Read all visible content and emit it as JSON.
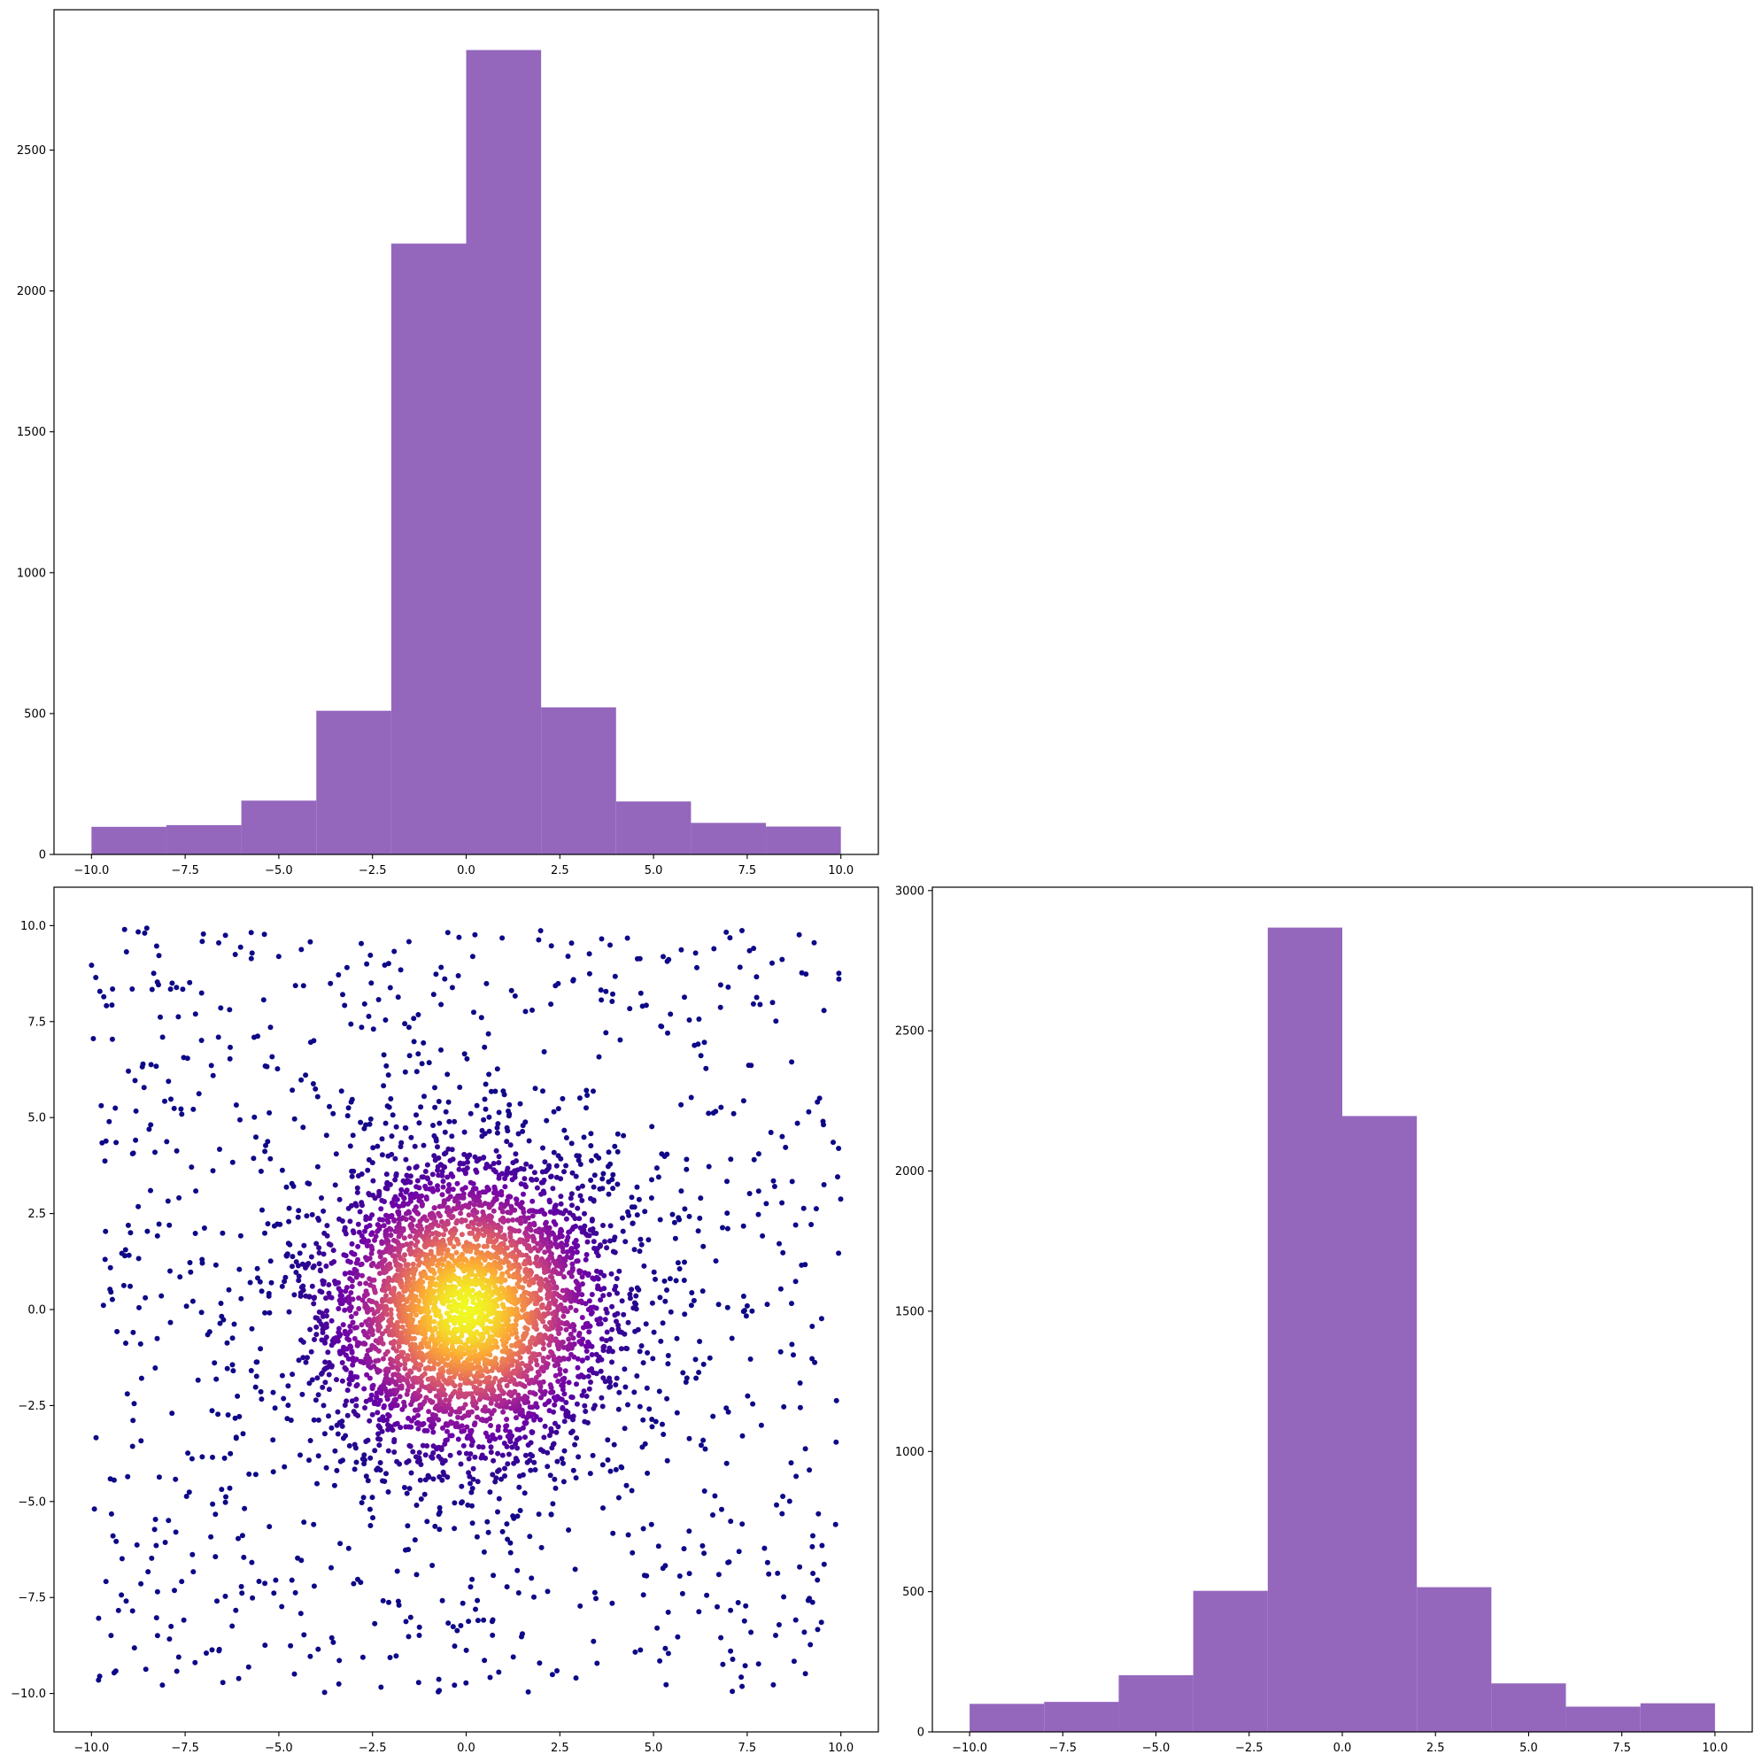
{
  "chart_data": [
    {
      "type": "bar",
      "panel": "top-left",
      "orientation": "vertical",
      "bin_edges": [
        -10,
        -8,
        -6,
        -4,
        -2,
        0,
        2,
        4,
        6,
        8,
        10
      ],
      "values": [
        98,
        104,
        191,
        510,
        2168,
        2855,
        522,
        188,
        112,
        99
      ],
      "color": "#9467bd",
      "xlim": [
        -11,
        11
      ],
      "ylim": [
        0,
        2998
      ],
      "xticks": [
        -10.0,
        -7.5,
        -5.0,
        -2.5,
        0.0,
        2.5,
        5.0,
        7.5,
        10.0
      ],
      "xtick_labels": [
        "−10.0",
        "−7.5",
        "−5.0",
        "−2.5",
        "0.0",
        "2.5",
        "5.0",
        "7.5",
        "10.0"
      ],
      "yticks": [
        0,
        500,
        1000,
        1500,
        2000,
        2500
      ],
      "ytick_labels": [
        "0",
        "500",
        "1000",
        "1500",
        "2000",
        "2500"
      ],
      "title": "",
      "xlabel": "",
      "ylabel": "",
      "grid": false
    },
    {
      "type": "scatter",
      "panel": "bottom-left",
      "description_of_points": "about 5000 points: dense Gaussian cluster centered at (0,0) plus a uniform background over [-10,10] x [-10,10]; colored by local density with the plasma colormap (dark purple = sparse, yellow = densest)",
      "n_points": 5000,
      "cluster_center": [
        0,
        0
      ],
      "cluster_std": 2.0,
      "uniform_range": [
        -10,
        10
      ],
      "colormap": [
        "#0d0887",
        "#6a00a8",
        "#b12a90",
        "#e16462",
        "#fca636",
        "#f0f921"
      ],
      "xlim": [
        -11,
        11
      ],
      "ylim": [
        -11,
        11
      ],
      "xticks": [
        -10.0,
        -7.5,
        -5.0,
        -2.5,
        0.0,
        2.5,
        5.0,
        7.5,
        10.0
      ],
      "xtick_labels": [
        "−10.0",
        "−7.5",
        "−5.0",
        "−2.5",
        "0.0",
        "2.5",
        "5.0",
        "7.5",
        "10.0"
      ],
      "yticks": [
        -10.0,
        -7.5,
        -5.0,
        -2.5,
        0.0,
        2.5,
        5.0,
        7.5,
        10.0
      ],
      "ytick_labels": [
        "−10.0",
        "−7.5",
        "−5.0",
        "−2.5",
        "0.0",
        "2.5",
        "5.0",
        "7.5",
        "10.0"
      ],
      "title": "",
      "xlabel": "",
      "ylabel": "",
      "grid": false
    },
    {
      "type": "bar",
      "panel": "bottom-right",
      "orientation": "vertical",
      "bin_edges": [
        -10,
        -8,
        -6,
        -4,
        -2,
        0,
        2,
        4,
        6,
        8,
        10
      ],
      "values": [
        100,
        107,
        202,
        503,
        2868,
        2196,
        516,
        173,
        90,
        102
      ],
      "color": "#9467bd",
      "xlim": [
        -11,
        11
      ],
      "ylim": [
        0,
        3012
      ],
      "xticks": [
        -10.0,
        -7.5,
        -5.0,
        -2.5,
        0.0,
        2.5,
        5.0,
        7.5,
        10.0
      ],
      "xtick_labels": [
        "−10.0",
        "−7.5",
        "−5.0",
        "−2.5",
        "0.0",
        "2.5",
        "5.0",
        "7.5",
        "10.0"
      ],
      "yticks": [
        0,
        500,
        1000,
        1500,
        2000,
        2500,
        3000
      ],
      "ytick_labels": [
        "0",
        "500",
        "1000",
        "1500",
        "2000",
        "2500",
        "3000"
      ],
      "title": "",
      "xlabel": "",
      "ylabel": "",
      "grid": false
    }
  ]
}
